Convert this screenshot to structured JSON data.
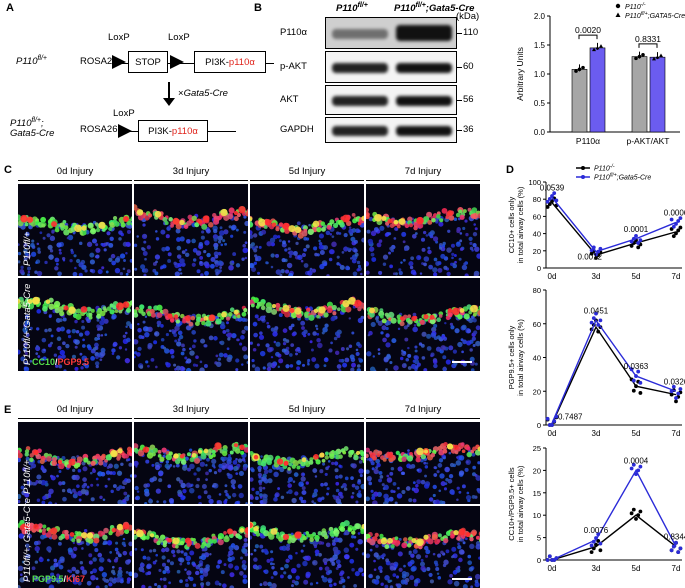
{
  "panelA": {
    "label": "A",
    "genotype1": "P110",
    "genotype1_sup": "fl/+",
    "rosa1": "ROSA26",
    "loxp1": "LoxP",
    "loxp2": "LoxP",
    "stop": "STOP",
    "pi3k1_a": "PI3K-",
    "pi3k1_b": "p110α",
    "cross": "×",
    "cross_gene": "Gata5-Cre",
    "genotype2_a": "P110",
    "genotype2_sup": "fl/+",
    "genotype2_b": ";",
    "genotype2_c": "Gata5-Cre",
    "rosa2": "ROSA26",
    "loxp3": "LoxP",
    "pi3k2_a": "PI3K-",
    "pi3k2_b": "p110α"
  },
  "panelB": {
    "label": "B",
    "col1": "P110",
    "col1_sup": "fl/+",
    "col2": "P110",
    "col2_sup": "fl/+",
    "col2_tail": ";Gata5-Cre",
    "kda": "(kDa)",
    "rows": [
      {
        "name": "P110α",
        "kda": "110"
      },
      {
        "name": "p-AKT",
        "kda": "60"
      },
      {
        "name": "AKT",
        "kda": "56"
      },
      {
        "name": "GAPDH",
        "kda": "36"
      }
    ],
    "bar": {
      "ylabel": "Arbitrary Units",
      "yticks": [
        "0.0",
        "0.5",
        "1.0",
        "1.5",
        "2.0"
      ],
      "groups": [
        "P110α",
        "p-AKT/AKT"
      ],
      "values": [
        [
          1.08,
          1.45
        ],
        [
          1.3,
          1.29
        ]
      ],
      "pvalues": [
        "0.0020",
        "0.8331"
      ],
      "legend": [
        {
          "label": "P110",
          "sup": "-/-"
        },
        {
          "label": "P110",
          "sup": "fl/+",
          "tail": ";GATA5-Cre"
        }
      ]
    }
  },
  "panelC": {
    "label": "C",
    "headers": [
      "0d Injury",
      "3d Injury",
      "5d Injury",
      "7d Injury"
    ],
    "row1": "P110fl/+",
    "row2": "P110fl/+;Gata5-Cre",
    "stain_a": "CC10",
    "stain_sep": "/",
    "stain_b": "PGP9.5"
  },
  "panelD": {
    "label": "D",
    "legend": [
      {
        "label": "P110",
        "sup": "-/-"
      },
      {
        "label": "P110",
        "sup": "fl/+",
        "tail": ";Gata5-Cre"
      }
    ],
    "xticks": [
      "0d",
      "3d",
      "5d",
      "7d"
    ],
    "plots": [
      {
        "ylabel1": "CC10+ cells only",
        "ylabel2": "in total airway cells (%)",
        "yticks": [
          "0",
          "20",
          "40",
          "60",
          "80",
          "100"
        ],
        "black": [
          76,
          15,
          29,
          42
        ],
        "blue": [
          82,
          19,
          34,
          53
        ],
        "pvals": [
          {
            "v": "0.0539",
            "i": 0,
            "pos": "above"
          },
          {
            "v": "0.0012",
            "i": 1,
            "pos": "left"
          },
          {
            "v": "0.0001",
            "i": 2,
            "pos": "above"
          },
          {
            "v": "0.0006",
            "i": 3,
            "pos": "above"
          }
        ]
      },
      {
        "ylabel1": "PGP9.5+ cells only",
        "ylabel2": "in total airway cells (%)",
        "yticks": [
          "0",
          "20",
          "40",
          "60",
          "80"
        ],
        "black": [
          0.5,
          58,
          23,
          18
        ],
        "blue": [
          1,
          62,
          29,
          20
        ],
        "pvals": [
          {
            "v": "0.0451",
            "i": 1,
            "pos": "above"
          },
          {
            "v": "0.7487",
            "i": 0,
            "pos": "right"
          },
          {
            "v": "0.0363",
            "i": 2,
            "pos": "above"
          },
          {
            "v": "0.0326",
            "i": 3,
            "pos": "above"
          }
        ]
      },
      {
        "ylabel1": "CC10+/PGP9.5+ cells",
        "ylabel2": "in total airway cells (%)",
        "yticks": [
          "0",
          "5",
          "10",
          "15",
          "20",
          "25"
        ],
        "black": [
          0,
          3,
          10,
          3
        ],
        "blue": [
          0,
          4.5,
          20,
          3
        ],
        "pvals": [
          {
            "v": "0.0076",
            "i": 1,
            "pos": "above"
          },
          {
            "v": "0.0004",
            "i": 2,
            "pos": "above"
          },
          {
            "v": "0.8344",
            "i": 3,
            "pos": "above"
          }
        ]
      }
    ]
  },
  "panelE": {
    "label": "E",
    "headers": [
      "0d Injury",
      "3d Injury",
      "5d Injury",
      "7d Injury"
    ],
    "row1": "P110fl/+",
    "row2": "P110fl/+; Gata5-Cre",
    "stain_a": "PGP9.5",
    "stain_sep": "/",
    "stain_b": "Ki67"
  },
  "colors": {
    "blue": "#2b2bd8",
    "red": "#e0241c",
    "gray": "#a6a6a6",
    "violet": "#6b5cf0"
  }
}
